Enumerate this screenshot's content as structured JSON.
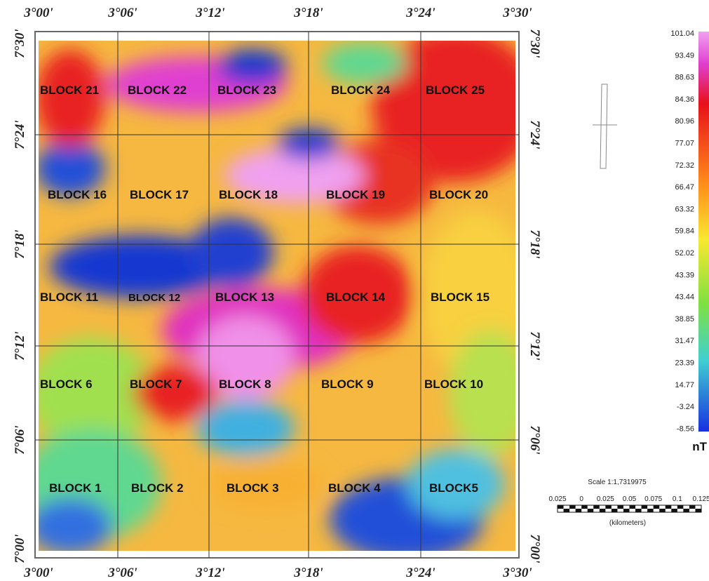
{
  "top_axis": [
    "3°00'",
    "3°06'",
    "3°12'",
    "3°18'",
    "3°24'",
    "3°30'"
  ],
  "bottom_axis": [
    "3°00'",
    "3°06'",
    "3°12'",
    "3°18'",
    "3°24'",
    "3°30'"
  ],
  "left_axis": [
    "7°30'",
    "7°24'",
    "7°18'",
    "7°12'",
    "7°06'",
    "7°00'"
  ],
  "right_axis": [
    "7°30'",
    "7°24'",
    "7°18'",
    "7°12'",
    "7°06'",
    "7°00'"
  ],
  "blocks": [
    "BLOCK 21",
    "BLOCK 22",
    "BLOCK 23",
    "BLOCK 24",
    "BLOCK 25",
    "BLOCK 16",
    "BLOCK 17",
    "BLOCK 18",
    "BLOCK 19",
    "BLOCK 20",
    "BLOCK 11",
    "BLOCK 12",
    "BLOCK 13",
    "BLOCK 14",
    "BLOCK 15",
    "BLOCK 6",
    "BLOCK 7",
    "BLOCK 8",
    "BLOCK 9",
    "BLOCK 10",
    "BLOCK 1",
    "BLOCK 2",
    "BLOCK 3",
    "BLOCK 4",
    "BLOCK5"
  ],
  "legend": {
    "values": [
      "101.04",
      "93.49",
      "88.63",
      "84.36",
      "80.96",
      "77.07",
      "72.32",
      "66.47",
      "63.32",
      "59.84",
      "52.02",
      "43.39",
      "43.44",
      "38.85",
      "31.47",
      "23.39",
      "14.77",
      "-3.24",
      "-8.56"
    ],
    "unit": "nT"
  },
  "scale": {
    "title": "Scale 1:1,7319975",
    "ticks": [
      "0.025",
      "0",
      "0.025",
      "0.05",
      "0.075",
      "0.1",
      "0.125"
    ],
    "unit": "(kilometers)"
  }
}
